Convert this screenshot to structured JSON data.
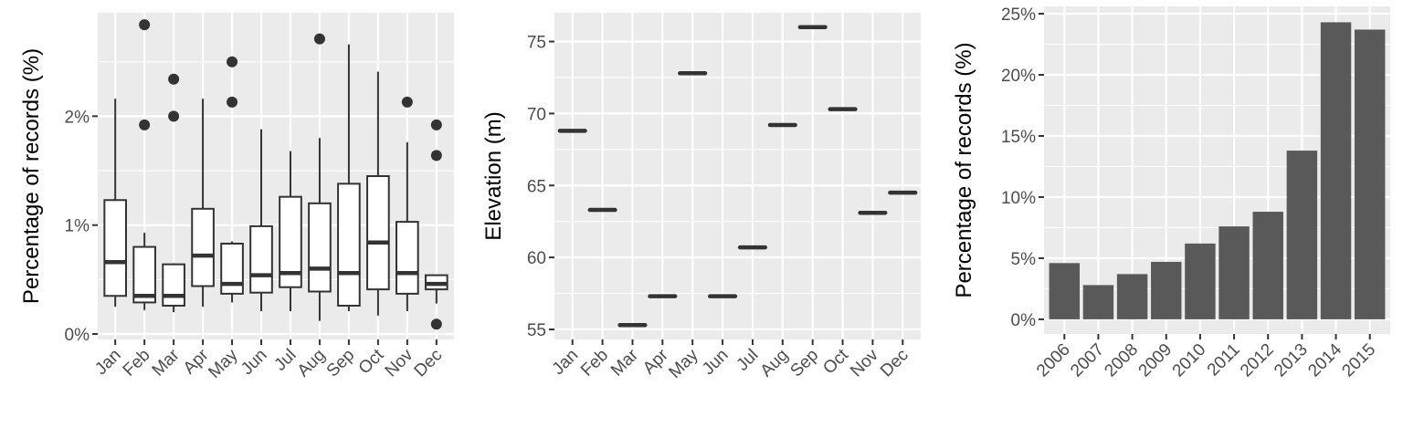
{
  "chart_data": [
    {
      "type": "boxplot",
      "xlabel": "",
      "ylabel": "Percentage of records (%)",
      "categories": [
        "Jan",
        "Feb",
        "Mar",
        "Apr",
        "May",
        "Jun",
        "Jul",
        "Aug",
        "Sep",
        "Oct",
        "Nov",
        "Dec"
      ],
      "ylim": [
        -0.05,
        2.95
      ],
      "yticks": [
        0,
        1,
        2
      ],
      "ytick_labels": [
        "0%",
        "1%",
        "2%"
      ],
      "boxes": [
        {
          "low": 0.25,
          "q1": 0.35,
          "median": 0.66,
          "q3": 1.23,
          "high": 2.16,
          "outliers": []
        },
        {
          "low": 0.22,
          "q1": 0.29,
          "median": 0.35,
          "q3": 0.8,
          "high": 0.93,
          "outliers": [
            1.92,
            2.84
          ]
        },
        {
          "low": 0.2,
          "q1": 0.26,
          "median": 0.35,
          "q3": 0.64,
          "high": 0.65,
          "outliers": [
            2.0,
            2.34
          ]
        },
        {
          "low": 0.25,
          "q1": 0.44,
          "median": 0.72,
          "q3": 1.15,
          "high": 2.16,
          "outliers": []
        },
        {
          "low": 0.29,
          "q1": 0.37,
          "median": 0.46,
          "q3": 0.83,
          "high": 0.85,
          "outliers": [
            2.13,
            2.5
          ]
        },
        {
          "low": 0.21,
          "q1": 0.38,
          "median": 0.54,
          "q3": 0.99,
          "high": 1.88,
          "outliers": []
        },
        {
          "low": 0.21,
          "q1": 0.43,
          "median": 0.56,
          "q3": 1.26,
          "high": 1.68,
          "outliers": []
        },
        {
          "low": 0.12,
          "q1": 0.39,
          "median": 0.6,
          "q3": 1.2,
          "high": 1.8,
          "outliers": [
            2.71
          ]
        },
        {
          "low": 0.21,
          "q1": 0.26,
          "median": 0.56,
          "q3": 1.38,
          "high": 2.66,
          "outliers": []
        },
        {
          "low": 0.17,
          "q1": 0.41,
          "median": 0.84,
          "q3": 1.45,
          "high": 2.41,
          "outliers": []
        },
        {
          "low": 0.21,
          "q1": 0.37,
          "median": 0.56,
          "q3": 1.03,
          "high": 1.76,
          "outliers": [
            2.13
          ]
        },
        {
          "low": 0.28,
          "q1": 0.41,
          "median": 0.46,
          "q3": 0.54,
          "high": 0.54,
          "outliers": [
            0.09,
            1.64,
            1.92
          ]
        }
      ]
    },
    {
      "type": "scatter",
      "xlabel": "",
      "ylabel": "Elevation (m)",
      "categories": [
        "Jan",
        "Feb",
        "Mar",
        "Apr",
        "May",
        "Jun",
        "Jul",
        "Aug",
        "Sep",
        "Oct",
        "Nov",
        "Dec"
      ],
      "values": [
        68.8,
        63.3,
        55.3,
        57.3,
        72.8,
        57.3,
        60.7,
        69.2,
        76.0,
        70.3,
        63.1,
        64.5
      ],
      "ylim": [
        54.3,
        77.0
      ],
      "yticks": [
        55,
        60,
        65,
        70,
        75
      ],
      "ytick_labels": [
        "55",
        "60",
        "65",
        "70",
        "75"
      ]
    },
    {
      "type": "bar",
      "xlabel": "",
      "ylabel": "Percentage of records (%)",
      "categories": [
        "2006",
        "2007",
        "2008",
        "2009",
        "2010",
        "2011",
        "2012",
        "2013",
        "2014",
        "2015"
      ],
      "values": [
        4.6,
        2.8,
        3.7,
        4.7,
        6.2,
        7.6,
        8.8,
        13.8,
        24.3,
        23.7
      ],
      "ylim": [
        -1.2,
        25.6
      ],
      "yticks": [
        0,
        5,
        10,
        15,
        20,
        25
      ],
      "ytick_labels": [
        "0%",
        "5%",
        "10%",
        "15%",
        "20%",
        "25%"
      ]
    }
  ]
}
